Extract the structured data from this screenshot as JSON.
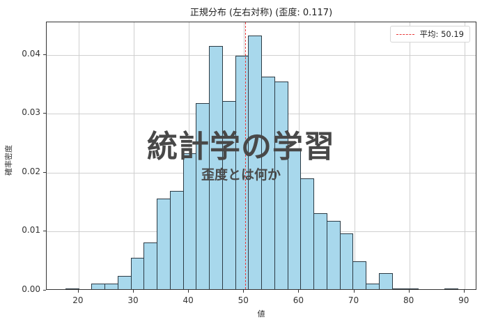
{
  "chart_data": {
    "type": "bar",
    "subtype": "histogram",
    "title": "正規分布 (左右対称) (歪度: 0.117)",
    "xlabel": "値",
    "ylabel": "確率密度",
    "xlim": [
      14.2,
      92.3
    ],
    "ylim": [
      0,
      0.0455
    ],
    "xticks": [
      20,
      30,
      40,
      50,
      60,
      70,
      80,
      90
    ],
    "yticks": [
      0.0,
      0.01,
      0.02,
      0.03,
      0.04
    ],
    "ytick_labels": [
      "0.00",
      "0.01",
      "0.02",
      "0.03",
      "0.04"
    ],
    "grid": true,
    "bin_start": 17.6,
    "bin_width": 2.37,
    "bins": 30,
    "densities": [
      0.0004,
      0.0,
      0.0012,
      0.0012,
      0.0025,
      0.0055,
      0.0081,
      0.0156,
      0.0169,
      0.0233,
      0.0318,
      0.0415,
      0.0321,
      0.0398,
      0.0432,
      0.0363,
      0.0355,
      0.0237,
      0.019,
      0.0131,
      0.0118,
      0.0097,
      0.005,
      0.0012,
      0.0029,
      0.0004,
      0.0004,
      0.0,
      0.0,
      0.0004
    ],
    "bar_color": "#a8d8ec",
    "edge_color": "#2b3a44",
    "mean_line": {
      "value": 50.19,
      "label": "平均: 50.19",
      "color": "#e8393a",
      "style": "dashed"
    },
    "legend": {
      "position": "upper right",
      "entries": [
        "平均: 50.19"
      ]
    },
    "skewness": 0.117
  },
  "overlay": {
    "title": "統計学の学習",
    "subtitle": "歪度とは何か"
  }
}
